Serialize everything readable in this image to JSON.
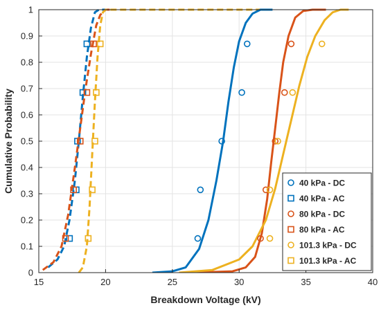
{
  "chart_data": {
    "type": "line",
    "title": "",
    "xlabel": "Breakdown Voltage (kV)",
    "ylabel": "Cumulative Probability",
    "xlim": [
      15,
      40
    ],
    "ylim": [
      0,
      1
    ],
    "xticks": [
      15,
      20,
      25,
      30,
      35,
      40
    ],
    "yticks": [
      0,
      0.1,
      0.2,
      0.3,
      0.4,
      0.5,
      0.6,
      0.7,
      0.8,
      0.9,
      1
    ],
    "grid": true,
    "legend_position": "bottom-right",
    "series": [
      {
        "name": "40 kPa - DC",
        "color": "#0072BD",
        "marker": "circle",
        "line_style": "solid",
        "points": [
          [
            26.9,
            0.13
          ],
          [
            27.1,
            0.315
          ],
          [
            28.7,
            0.5
          ],
          [
            30.2,
            0.685
          ],
          [
            30.6,
            0.87
          ]
        ],
        "fit": [
          [
            23.5,
            0.0
          ],
          [
            25.0,
            0.005
          ],
          [
            26.0,
            0.02
          ],
          [
            27.0,
            0.09
          ],
          [
            27.7,
            0.2
          ],
          [
            28.3,
            0.35
          ],
          [
            28.8,
            0.5
          ],
          [
            29.2,
            0.65
          ],
          [
            29.6,
            0.78
          ],
          [
            30.0,
            0.88
          ],
          [
            30.5,
            0.95
          ],
          [
            31.0,
            0.985
          ],
          [
            31.6,
            1.0
          ],
          [
            32.5,
            1.0
          ]
        ]
      },
      {
        "name": "40 kPa - AC",
        "color": "#0072BD",
        "marker": "square",
        "line_style": "dashed",
        "points": [
          [
            17.3,
            0.13
          ],
          [
            17.8,
            0.315
          ],
          [
            17.9,
            0.5
          ],
          [
            18.3,
            0.685
          ],
          [
            18.6,
            0.87
          ]
        ],
        "fit": [
          [
            15.7,
            0.02
          ],
          [
            16.4,
            0.05
          ],
          [
            16.9,
            0.1
          ],
          [
            17.3,
            0.2
          ],
          [
            17.7,
            0.35
          ],
          [
            18.0,
            0.5
          ],
          [
            18.3,
            0.67
          ],
          [
            18.6,
            0.82
          ],
          [
            18.9,
            0.93
          ],
          [
            19.2,
            0.99
          ],
          [
            19.5,
            1.0
          ],
          [
            20.3,
            1.0
          ]
        ]
      },
      {
        "name": "80 kPa - DC",
        "color": "#D95319",
        "marker": "circle",
        "line_style": "solid",
        "points": [
          [
            31.6,
            0.13
          ],
          [
            32.0,
            0.315
          ],
          [
            32.7,
            0.5
          ],
          [
            33.4,
            0.685
          ],
          [
            33.9,
            0.87
          ]
        ],
        "fit": [
          [
            26.5,
            0.0
          ],
          [
            29.5,
            0.005
          ],
          [
            30.5,
            0.02
          ],
          [
            31.2,
            0.06
          ],
          [
            31.7,
            0.15
          ],
          [
            32.1,
            0.28
          ],
          [
            32.4,
            0.42
          ],
          [
            32.7,
            0.55
          ],
          [
            33.0,
            0.68
          ],
          [
            33.3,
            0.8
          ],
          [
            33.7,
            0.9
          ],
          [
            34.2,
            0.97
          ],
          [
            34.8,
            0.995
          ],
          [
            35.5,
            1.0
          ],
          [
            36.5,
            1.0
          ]
        ]
      },
      {
        "name": "80 kPa - AC",
        "color": "#D95319",
        "marker": "square",
        "line_style": "dashed",
        "points": [
          [
            17.0,
            0.13
          ],
          [
            17.6,
            0.315
          ],
          [
            18.1,
            0.5
          ],
          [
            18.6,
            0.685
          ],
          [
            19.1,
            0.87
          ]
        ],
        "fit": [
          [
            15.3,
            0.01
          ],
          [
            16.1,
            0.04
          ],
          [
            16.7,
            0.1
          ],
          [
            17.2,
            0.22
          ],
          [
            17.7,
            0.4
          ],
          [
            18.1,
            0.55
          ],
          [
            18.5,
            0.7
          ],
          [
            18.9,
            0.83
          ],
          [
            19.3,
            0.94
          ],
          [
            19.6,
            0.98
          ],
          [
            20.0,
            1.0
          ],
          [
            20.5,
            1.0
          ]
        ]
      },
      {
        "name": "101.3 kPa - DC",
        "color": "#EDB120",
        "marker": "circle",
        "line_style": "solid",
        "points": [
          [
            32.3,
            0.13
          ],
          [
            32.3,
            0.315
          ],
          [
            32.9,
            0.5
          ],
          [
            34.0,
            0.685
          ],
          [
            36.2,
            0.87
          ]
        ],
        "fit": [
          [
            25.5,
            0.0
          ],
          [
            28.0,
            0.01
          ],
          [
            30.0,
            0.05
          ],
          [
            31.0,
            0.1
          ],
          [
            32.0,
            0.2
          ],
          [
            32.7,
            0.32
          ],
          [
            33.3,
            0.45
          ],
          [
            33.9,
            0.58
          ],
          [
            34.5,
            0.71
          ],
          [
            35.1,
            0.82
          ],
          [
            35.7,
            0.9
          ],
          [
            36.4,
            0.96
          ],
          [
            37.0,
            0.99
          ],
          [
            37.6,
            1.0
          ],
          [
            38.2,
            1.0
          ]
        ]
      },
      {
        "name": "101.3 kPa - AC",
        "color": "#EDB120",
        "marker": "square",
        "line_style": "dashed",
        "points": [
          [
            18.7,
            0.13
          ],
          [
            19.0,
            0.315
          ],
          [
            19.2,
            0.5
          ],
          [
            19.3,
            0.685
          ],
          [
            19.6,
            0.87
          ]
        ],
        "fit": [
          [
            18.0,
            0.0
          ],
          [
            18.3,
            0.02
          ],
          [
            18.6,
            0.1
          ],
          [
            18.8,
            0.25
          ],
          [
            19.0,
            0.45
          ],
          [
            19.2,
            0.65
          ],
          [
            19.4,
            0.82
          ],
          [
            19.6,
            0.94
          ],
          [
            19.8,
            0.99
          ],
          [
            20.0,
            1.0
          ],
          [
            23.0,
            1.0
          ],
          [
            32.5,
            1.0
          ]
        ]
      }
    ]
  }
}
